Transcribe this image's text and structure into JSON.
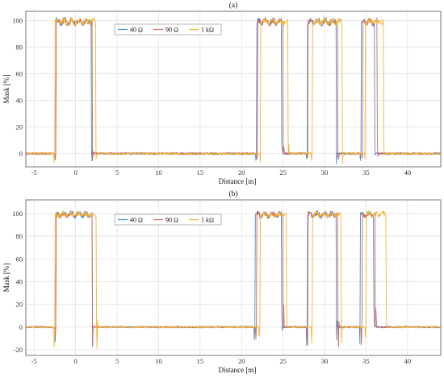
{
  "colors": {
    "s40": "#3a8fd6",
    "s90": "#d9625a",
    "s1k": "#f2b632"
  },
  "chart_data": [
    {
      "type": "line",
      "title": "(a)",
      "xlabel": "Distance [m]",
      "ylabel": "Mask [%]",
      "xlim": [
        -6,
        44
      ],
      "ylim": [
        -10,
        107
      ],
      "xticks": [
        -5,
        0,
        5,
        10,
        15,
        20,
        25,
        30,
        35,
        40
      ],
      "yticks": [
        0,
        20,
        40,
        60,
        80,
        100
      ],
      "grid": true,
      "legend": "top-center",
      "series": [
        {
          "name": "40 Ω",
          "color": "#3a8fd6",
          "segments": [
            {
              "from": -2.4,
              "to": 1.9
            },
            {
              "from": 21.8,
              "to": 24.8
            },
            {
              "from": 27.9,
              "to": 31.4
            },
            {
              "from": 34.4,
              "to": 36.0
            }
          ]
        },
        {
          "name": "90 Ω",
          "color": "#d9625a",
          "segments": [
            {
              "from": -2.4,
              "to": 2.0
            },
            {
              "from": 21.9,
              "to": 25.0
            },
            {
              "from": 28.0,
              "to": 31.6
            },
            {
              "from": 34.6,
              "to": 36.3
            }
          ]
        },
        {
          "name": "1 kΩ",
          "color": "#f2b632",
          "segments": [
            {
              "from": -2.5,
              "to": 2.4
            },
            {
              "from": 22.3,
              "to": 25.6
            },
            {
              "from": 28.5,
              "to": 32.1
            },
            {
              "from": 34.9,
              "to": 37.1
            }
          ]
        }
      ]
    },
    {
      "type": "line",
      "title": "(b)",
      "xlabel": "Distance [m]",
      "ylabel": "Mask [%]",
      "xlim": [
        -6,
        44
      ],
      "ylim": [
        -25,
        112
      ],
      "xticks": [
        -5,
        0,
        5,
        10,
        15,
        20,
        25,
        30,
        35,
        40
      ],
      "yticks": [
        -20,
        0,
        20,
        40,
        60,
        80,
        100
      ],
      "grid": true,
      "legend": "top-center",
      "series": [
        {
          "name": "40 Ω",
          "color": "#3a8fd6",
          "segments": [
            {
              "from": -2.4,
              "to": 2.0
            },
            {
              "from": 21.6,
              "to": 24.8
            },
            {
              "from": 27.9,
              "to": 31.4
            },
            {
              "from": 34.3,
              "to": 35.9
            }
          ]
        },
        {
          "name": "90 Ω",
          "color": "#d9625a",
          "segments": [
            {
              "from": -2.4,
              "to": 2.0
            },
            {
              "from": 21.8,
              "to": 25.0
            },
            {
              "from": 28.0,
              "to": 31.6
            },
            {
              "from": 34.5,
              "to": 36.1
            }
          ]
        },
        {
          "name": "1 kΩ",
          "color": "#f2b632",
          "segments": [
            {
              "from": -2.5,
              "to": 2.5
            },
            {
              "from": 22.2,
              "to": 25.4
            },
            {
              "from": 28.5,
              "to": 32.0
            },
            {
              "from": 35.0,
              "to": 37.4
            }
          ]
        }
      ]
    }
  ]
}
